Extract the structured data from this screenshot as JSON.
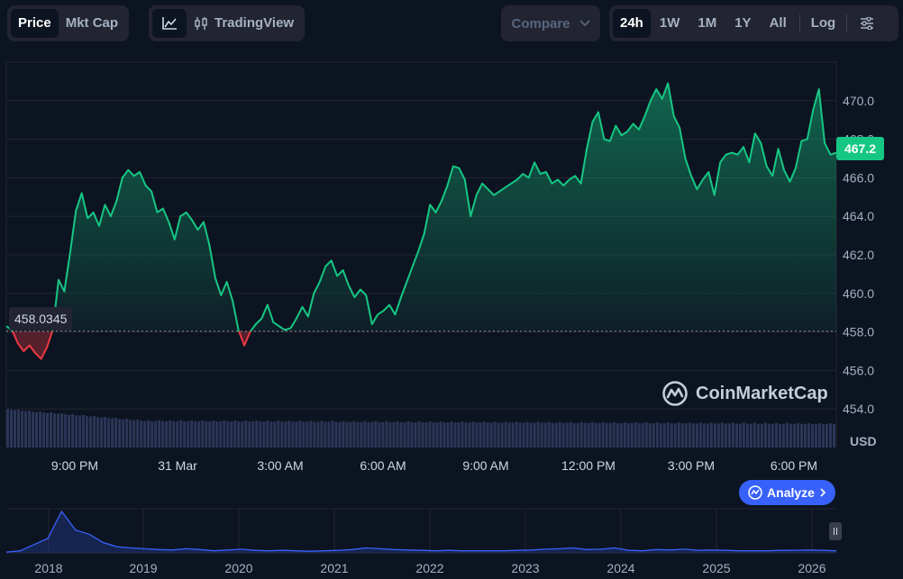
{
  "toolbar": {
    "type_tabs": [
      {
        "label": "Price",
        "active": true
      },
      {
        "label": "Mkt Cap",
        "active": false
      }
    ],
    "chart_style": {
      "line_icon": "line-chart-icon",
      "tradingview_icon": "candlestick-icon",
      "tradingview_label": "TradingView"
    },
    "compare": {
      "label": "Compare",
      "icon": "chevron-down-icon"
    },
    "ranges": [
      {
        "label": "24h",
        "active": true
      },
      {
        "label": "1W",
        "active": false
      },
      {
        "label": "1M",
        "active": false
      },
      {
        "label": "1Y",
        "active": false
      },
      {
        "label": "All",
        "active": false
      }
    ],
    "log_label": "Log",
    "settings_icon": "sliders-icon"
  },
  "current_price_label": "467.2",
  "base_price_label": "458.0345",
  "currency_label": "USD",
  "watermark_text": "CoinMarketCap",
  "analyze_label": "Analyze",
  "colors": {
    "up": "#16c784",
    "down": "#ea3943",
    "accent": "#3861fb",
    "background": "#0d1421"
  },
  "chart_data": [
    {
      "type": "line",
      "baseline": 458.0345,
      "ylim": [
        452.0,
        472.0
      ],
      "y_ticks": [
        "454.0",
        "456.0",
        "458.0",
        "460.0",
        "462.0",
        "464.0",
        "466.0",
        "468.0",
        "470.0"
      ],
      "x_labels": [
        "9:00 PM",
        "31 Mar",
        "3:00 AM",
        "6:00 AM",
        "9:00 AM",
        "12:00 PM",
        "3:00 PM",
        "6:00 PM"
      ],
      "grid": true,
      "series": [
        {
          "values": [
            458.3,
            458.1,
            457.4,
            457.0,
            457.3,
            456.9,
            456.6,
            457.2,
            458.1,
            460.7,
            460.1,
            462.1,
            464.3,
            465.2,
            463.9,
            464.2,
            463.5,
            464.6,
            464.0,
            464.8,
            466.0,
            466.4,
            466.1,
            466.3,
            465.6,
            465.3,
            464.2,
            464.4,
            463.7,
            462.8,
            464.0,
            464.2,
            463.8,
            463.3,
            463.7,
            462.5,
            460.8,
            459.9,
            460.6,
            459.6,
            458.1,
            457.3,
            458.0,
            458.4,
            458.7,
            459.4,
            458.5,
            458.3,
            458.1,
            458.2,
            458.7,
            459.3,
            458.8,
            460.0,
            460.6,
            461.4,
            461.7,
            460.9,
            461.2,
            460.4,
            459.8,
            460.2,
            459.9,
            458.4,
            458.9,
            459.1,
            459.4,
            458.9,
            459.8,
            460.6,
            461.4,
            462.2,
            463.1,
            464.6,
            464.2,
            464.8,
            465.6,
            466.6,
            466.5,
            465.9,
            464.0,
            465.1,
            465.7,
            465.4,
            465.1,
            465.3,
            465.5,
            465.7,
            465.9,
            466.2,
            466.0,
            466.8,
            466.2,
            466.3,
            465.7,
            465.9,
            465.6,
            465.9,
            466.1,
            465.7,
            467.5,
            468.9,
            469.4,
            468.0,
            467.9,
            468.7,
            468.2,
            468.4,
            468.8,
            468.5,
            469.2,
            470.0,
            470.6,
            470.1,
            470.9,
            469.2,
            468.6,
            467.0,
            466.1,
            465.4,
            465.9,
            466.3,
            465.1,
            466.8,
            467.2,
            467.3,
            467.2,
            467.6,
            466.8,
            468.3,
            467.8,
            466.6,
            466.1,
            467.5,
            466.4,
            465.8,
            466.5,
            467.9,
            468.0,
            469.5,
            470.6,
            467.8,
            467.2,
            467.3
          ]
        }
      ]
    },
    {
      "type": "area",
      "x_labels": [
        "2018",
        "2019",
        "2020",
        "2021",
        "2022",
        "2023",
        "2024",
        "2025",
        "2026"
      ],
      "values": [
        2,
        5,
        20,
        35,
        100,
        55,
        45,
        25,
        15,
        12,
        10,
        8,
        7,
        10,
        8,
        5,
        7,
        9,
        6,
        5,
        6,
        5,
        4,
        5,
        6,
        8,
        12,
        10,
        8,
        7,
        6,
        5,
        6,
        5,
        5,
        5,
        5,
        6,
        7,
        9,
        10,
        12,
        8,
        9,
        12,
        6,
        5,
        8,
        7,
        9,
        6,
        7,
        6,
        5,
        5,
        5,
        6,
        6,
        7,
        6,
        5
      ]
    }
  ]
}
